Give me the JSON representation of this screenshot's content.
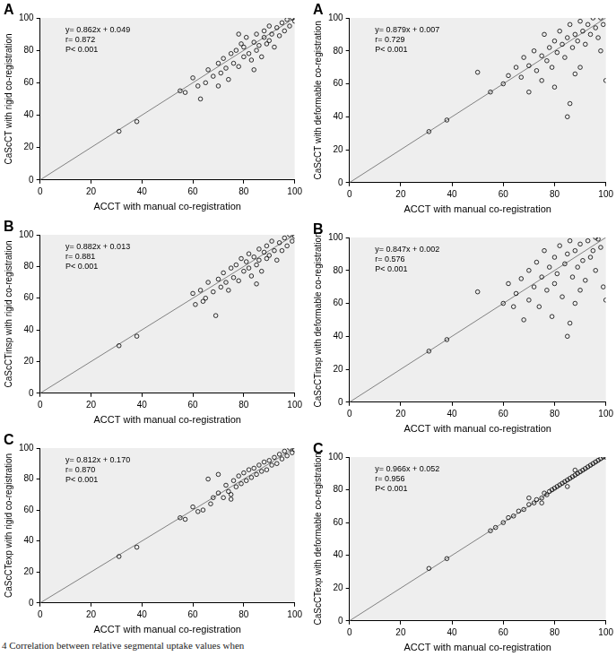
{
  "caption": "4 Correlation between relative segmental uptake values when",
  "chart_data": [
    {
      "type": "scatter",
      "panel_label": "A",
      "annotations": [
        "y= 0.862x + 0.049",
        "r= 0.872",
        "P< 0.001"
      ],
      "x_label": "ACCT with manual co-registration",
      "y_label": "CaScCT with rigid co-registration",
      "xlim": [
        0,
        100
      ],
      "ylim": [
        0,
        100
      ],
      "xticks": [
        0,
        20,
        40,
        60,
        80,
        100
      ],
      "yticks": [
        0,
        20,
        40,
        60,
        80,
        100
      ],
      "grid": false,
      "series": [
        {
          "type": "line",
          "line_style": "solid",
          "color": "#808080",
          "x": [
            0,
            100
          ],
          "values": [
            0,
            100
          ]
        },
        {
          "type": "scatter",
          "marker": "circle",
          "color": "#000000",
          "x": [
            31,
            38,
            55,
            57,
            60,
            62,
            63,
            65,
            66,
            68,
            70,
            71,
            72,
            73,
            74,
            75,
            76,
            77,
            78,
            79,
            80,
            80,
            81,
            82,
            83,
            84,
            85,
            85,
            86,
            87,
            88,
            88,
            89,
            90,
            90,
            91,
            92,
            93,
            94,
            95,
            96,
            97,
            98,
            99,
            100,
            84,
            78,
            70
          ],
          "values": [
            30,
            36,
            55,
            54,
            63,
            58,
            50,
            60,
            68,
            64,
            72,
            66,
            75,
            69,
            62,
            78,
            72,
            80,
            70,
            84,
            76,
            82,
            88,
            78,
            74,
            85,
            80,
            90,
            83,
            76,
            88,
            92,
            84,
            86,
            95,
            90,
            82,
            94,
            89,
            97,
            92,
            99,
            95,
            100,
            98,
            68,
            90,
            58
          ]
        }
      ]
    },
    {
      "type": "scatter",
      "panel_label": "B",
      "annotations": [
        "y= 0.882x + 0.013",
        "r= 0.881",
        "P< 0.001"
      ],
      "x_label": "ACCT with manual co-registration",
      "y_label": "CaScCTinsp with rigid co-registration",
      "xlim": [
        0,
        100
      ],
      "ylim": [
        0,
        100
      ],
      "xticks": [
        0,
        20,
        40,
        60,
        80,
        100
      ],
      "yticks": [
        0,
        20,
        40,
        60,
        80,
        100
      ],
      "grid": false,
      "series": [
        {
          "type": "line",
          "line_style": "solid",
          "color": "#808080",
          "x": [
            0,
            100
          ],
          "values": [
            0,
            100
          ]
        },
        {
          "type": "scatter",
          "marker": "circle",
          "color": "#000000",
          "x": [
            31,
            38,
            60,
            61,
            63,
            64,
            65,
            66,
            68,
            69,
            70,
            71,
            72,
            73,
            74,
            75,
            76,
            77,
            78,
            79,
            80,
            81,
            82,
            82,
            83,
            84,
            85,
            86,
            86,
            87,
            88,
            89,
            89,
            90,
            91,
            92,
            93,
            94,
            95,
            96,
            97,
            98,
            99,
            100,
            85
          ],
          "values": [
            30,
            36,
            63,
            56,
            65,
            58,
            60,
            70,
            64,
            49,
            72,
            67,
            76,
            70,
            65,
            79,
            73,
            81,
            71,
            85,
            77,
            83,
            88,
            79,
            74,
            86,
            81,
            91,
            84,
            77,
            89,
            93,
            85,
            87,
            96,
            90,
            84,
            95,
            90,
            98,
            93,
            100,
            96,
            99,
            69
          ]
        }
      ]
    },
    {
      "type": "scatter",
      "panel_label": "C",
      "annotations": [
        "y= 0.812x + 0.170",
        "r= 0.870",
        "P< 0.001"
      ],
      "x_label": "ACCT with manual co-registration",
      "y_label": "CaScCTexp with rigid co-registration",
      "xlim": [
        0,
        100
      ],
      "ylim": [
        0,
        100
      ],
      "xticks": [
        0,
        20,
        40,
        60,
        80,
        100
      ],
      "yticks": [
        0,
        20,
        40,
        60,
        80,
        100
      ],
      "grid": false,
      "series": [
        {
          "type": "line",
          "line_style": "solid",
          "color": "#808080",
          "x": [
            0,
            100
          ],
          "values": [
            0,
            100
          ]
        },
        {
          "type": "scatter",
          "marker": "circle",
          "color": "#000000",
          "x": [
            31,
            38,
            55,
            57,
            60,
            62,
            64,
            66,
            67,
            68,
            70,
            72,
            73,
            74,
            75,
            76,
            77,
            78,
            79,
            80,
            81,
            82,
            83,
            84,
            85,
            86,
            87,
            88,
            89,
            90,
            91,
            92,
            93,
            94,
            95,
            96,
            97,
            98,
            99,
            100,
            70,
            75
          ],
          "values": [
            30,
            36,
            55,
            54,
            62,
            59,
            60,
            80,
            64,
            68,
            71,
            68,
            76,
            72,
            70,
            79,
            75,
            82,
            77,
            84,
            79,
            86,
            81,
            87,
            83,
            89,
            85,
            91,
            86,
            92,
            89,
            94,
            90,
            96,
            93,
            98,
            95,
            100,
            97,
            99,
            83,
            67
          ]
        }
      ]
    },
    {
      "type": "scatter",
      "panel_label": "A",
      "annotations": [
        "y= 0.879x + 0.007",
        "r= 0.729",
        "P< 0.001"
      ],
      "x_label": "ACCT with manual co-registration",
      "y_label": "CaScCT with deformable co-registration",
      "xlim": [
        0,
        100
      ],
      "ylim": [
        0,
        100
      ],
      "xticks": [
        0,
        20,
        40,
        60,
        80,
        100
      ],
      "yticks": [
        0,
        20,
        40,
        60,
        80,
        100
      ],
      "grid": false,
      "series": [
        {
          "type": "line",
          "line_style": "solid",
          "color": "#808080",
          "x": [
            0,
            100
          ],
          "values": [
            0,
            100
          ]
        },
        {
          "type": "scatter",
          "marker": "circle",
          "color": "#000000",
          "x": [
            31,
            38,
            50,
            55,
            60,
            62,
            65,
            67,
            68,
            70,
            70,
            72,
            73,
            75,
            75,
            76,
            77,
            78,
            79,
            80,
            80,
            81,
            82,
            83,
            84,
            85,
            85,
            86,
            86,
            87,
            88,
            88,
            89,
            90,
            90,
            91,
            92,
            93,
            94,
            95,
            96,
            97,
            98,
            99,
            100,
            98
          ],
          "values": [
            31,
            38,
            67,
            55,
            60,
            65,
            70,
            64,
            76,
            71,
            55,
            80,
            68,
            77,
            62,
            90,
            74,
            82,
            70,
            86,
            58,
            79,
            92,
            84,
            76,
            88,
            40,
            96,
            48,
            82,
            90,
            66,
            86,
            98,
            70,
            92,
            84,
            96,
            90,
            100,
            94,
            88,
            100,
            96,
            62,
            80
          ]
        }
      ]
    },
    {
      "type": "scatter",
      "panel_label": "B",
      "annotations": [
        "y= 0.847x + 0.002",
        "r= 0.576",
        "P< 0.001"
      ],
      "x_label": "ACCT with manual co-registration",
      "y_label": "CaScCTinsp with deformable co-registration",
      "xlim": [
        0,
        100
      ],
      "ylim": [
        0,
        100
      ],
      "xticks": [
        0,
        20,
        40,
        60,
        80,
        100
      ],
      "yticks": [
        0,
        20,
        40,
        60,
        80,
        100
      ],
      "grid": false,
      "series": [
        {
          "type": "line",
          "line_style": "solid",
          "color": "#808080",
          "x": [
            0,
            100
          ],
          "values": [
            0,
            100
          ]
        },
        {
          "type": "scatter",
          "marker": "circle",
          "color": "#000000",
          "x": [
            31,
            38,
            50,
            60,
            62,
            64,
            65,
            67,
            68,
            70,
            70,
            72,
            73,
            74,
            75,
            76,
            77,
            78,
            79,
            80,
            80,
            81,
            82,
            83,
            84,
            85,
            85,
            86,
            86,
            87,
            88,
            88,
            89,
            90,
            90,
            91,
            92,
            93,
            94,
            95,
            96,
            97,
            98,
            99,
            100,
            96
          ],
          "values": [
            31,
            38,
            67,
            60,
            72,
            58,
            66,
            75,
            50,
            80,
            62,
            70,
            85,
            58,
            76,
            92,
            68,
            82,
            52,
            88,
            72,
            78,
            95,
            64,
            84,
            90,
            40,
            98,
            48,
            76,
            92,
            60,
            82,
            96,
            68,
            86,
            74,
            98,
            88,
            92,
            80,
            99,
            94,
            70,
            62,
            100
          ]
        }
      ]
    },
    {
      "type": "scatter",
      "panel_label": "C",
      "annotations": [
        "y= 0.966x + 0.052",
        "r= 0.956",
        "P< 0.001"
      ],
      "x_label": "ACCT with manual co-registration",
      "y_label": "CaScCTexp with deformable co-registration",
      "xlim": [
        0,
        100
      ],
      "ylim": [
        0,
        100
      ],
      "xticks": [
        0,
        20,
        40,
        60,
        80,
        100
      ],
      "yticks": [
        0,
        20,
        40,
        60,
        80,
        100
      ],
      "grid": false,
      "series": [
        {
          "type": "line",
          "line_style": "solid",
          "color": "#808080",
          "x": [
            0,
            100
          ],
          "values": [
            0,
            100
          ]
        },
        {
          "type": "scatter",
          "marker": "circle",
          "color": "#000000",
          "x": [
            31,
            38,
            55,
            57,
            60,
            62,
            64,
            66,
            68,
            70,
            72,
            73,
            75,
            76,
            77,
            78,
            79,
            80,
            81,
            82,
            83,
            84,
            85,
            86,
            87,
            88,
            89,
            90,
            91,
            92,
            93,
            94,
            95,
            96,
            97,
            98,
            99,
            100,
            70,
            75,
            85,
            88
          ],
          "values": [
            32,
            38,
            55,
            57,
            60,
            63,
            64,
            67,
            68,
            71,
            72,
            74,
            75,
            78,
            77,
            79,
            80,
            81,
            82,
            83,
            84,
            85,
            86,
            87,
            88,
            89,
            90,
            91,
            92,
            93,
            94,
            95,
            96,
            97,
            98,
            99,
            100,
            100,
            75,
            72,
            82,
            92
          ]
        }
      ]
    }
  ]
}
